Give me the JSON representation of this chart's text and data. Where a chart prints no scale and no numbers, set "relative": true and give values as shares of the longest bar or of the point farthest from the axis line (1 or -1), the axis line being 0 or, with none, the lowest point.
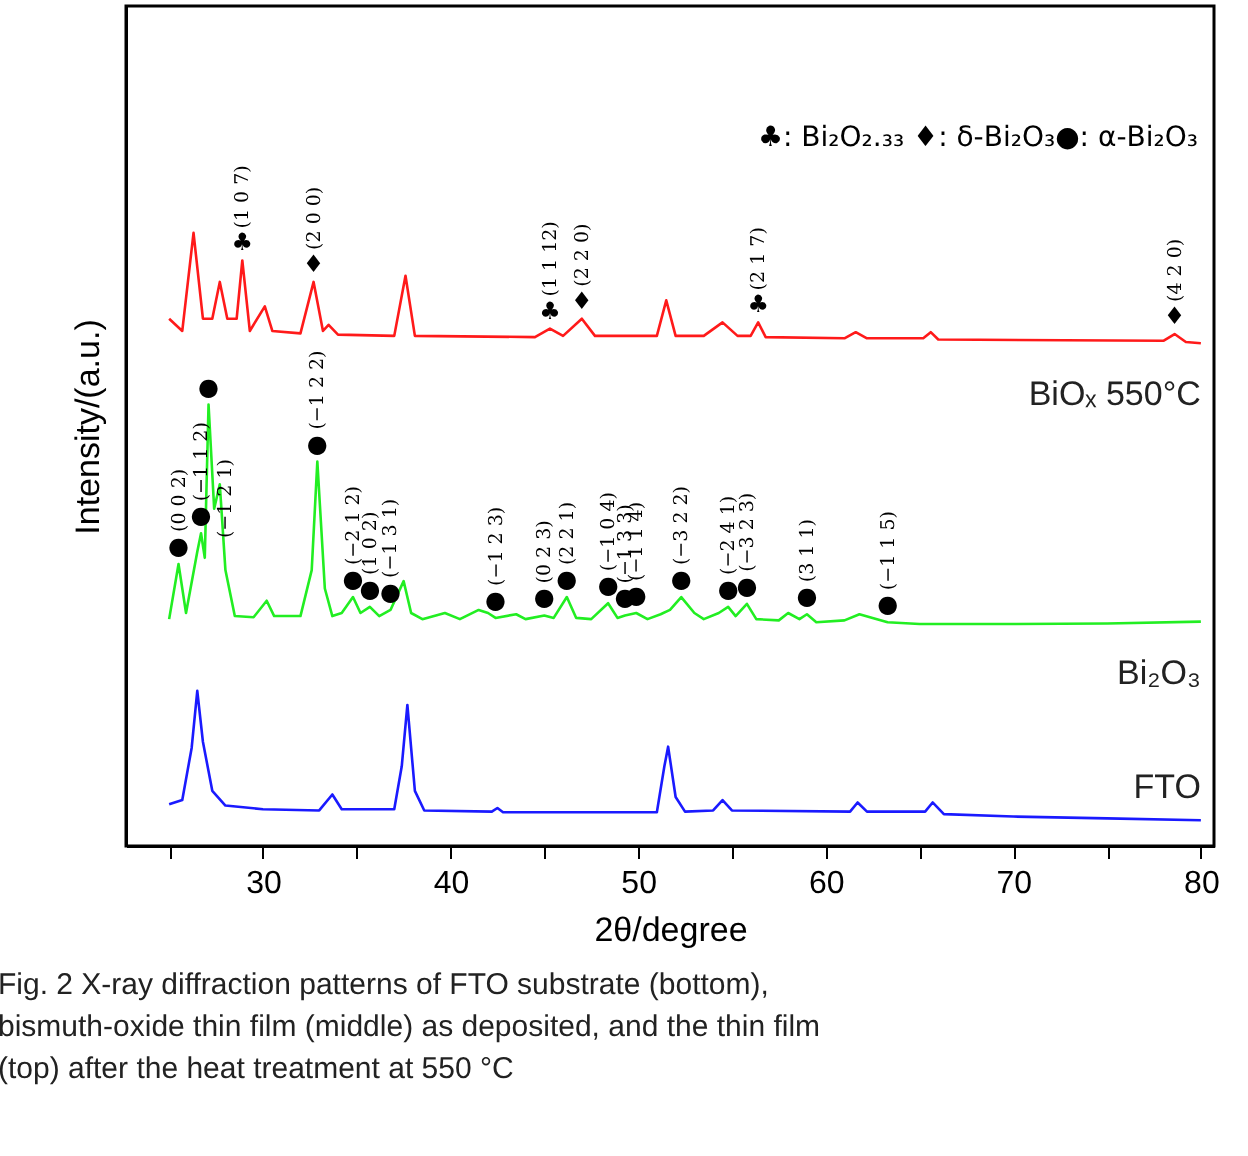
{
  "chart_data": {
    "type": "line",
    "relative": true,
    "xlabel": "2θ/degree",
    "ylabel": "Intensity/(a.u.)",
    "xlim": [
      22.7,
      80.7
    ],
    "xticks": [
      {
        "value": 25,
        "label": null
      },
      30,
      {
        "value": 35,
        "label": null
      },
      40,
      {
        "value": 45,
        "label": null
      },
      50,
      {
        "value": 55,
        "label": null
      },
      60,
      {
        "value": 65,
        "label": null
      },
      70,
      {
        "value": 75,
        "label": null
      },
      80
    ],
    "grid": false,
    "line_style": "solid",
    "marker": "none",
    "series": [
      {
        "name": "BiOₓ 550°C",
        "color": "#ff1a1a",
        "x": [
          25.0,
          25.7,
          26.3,
          26.8,
          27.3,
          27.7,
          28.1,
          28.6,
          28.9,
          29.3,
          30.1,
          30.5,
          32.0,
          32.7,
          33.2,
          33.5,
          34.0,
          37.0,
          37.6,
          38.1,
          44.5,
          45.3,
          46.0,
          47.0,
          47.7,
          51.0,
          51.5,
          52.0,
          53.5,
          54.5,
          55.3,
          56.0,
          56.4,
          56.8,
          61.0,
          61.6,
          62.2,
          65.2,
          65.6,
          66.0,
          78.0,
          78.6,
          79.2,
          80.0
        ],
        "values": [
          0.86,
          0.84,
          1.0,
          0.86,
          0.86,
          0.92,
          0.86,
          0.86,
          0.955,
          0.84,
          0.88,
          0.84,
          0.836,
          0.92,
          0.84,
          0.85,
          0.834,
          0.832,
          0.93,
          0.832,
          0.83,
          0.844,
          0.832,
          0.86,
          0.832,
          0.832,
          0.89,
          0.832,
          0.832,
          0.854,
          0.832,
          0.832,
          0.854,
          0.83,
          0.828,
          0.838,
          0.828,
          0.828,
          0.838,
          0.826,
          0.824,
          0.835,
          0.822,
          0.82
        ]
      },
      {
        "name": "Bi₂O₃",
        "color": "#22ee22",
        "x": [
          25.0,
          25.5,
          25.9,
          26.5,
          26.7,
          26.9,
          27.1,
          27.4,
          27.7,
          28.0,
          28.5,
          29.5,
          30.2,
          30.6,
          32.0,
          32.6,
          32.9,
          33.3,
          33.7,
          34.2,
          34.8,
          35.2,
          35.7,
          36.2,
          36.8,
          37.5,
          37.9,
          38.5,
          39.7,
          40.5,
          41.5,
          42.0,
          42.4,
          43.5,
          44.0,
          45.0,
          45.5,
          46.2,
          46.7,
          47.5,
          48.4,
          48.9,
          49.3,
          49.9,
          50.5,
          51.2,
          51.7,
          52.3,
          53.0,
          53.5,
          54.3,
          54.8,
          55.2,
          55.8,
          56.3,
          57.5,
          58.0,
          58.6,
          59.0,
          59.5,
          61.0,
          61.8,
          62.5,
          63.3,
          65.0,
          70.0,
          75.0,
          80.0
        ],
        "values": [
          0.37,
          0.46,
          0.38,
          0.48,
          0.51,
          0.47,
          0.72,
          0.55,
          0.59,
          0.45,
          0.375,
          0.373,
          0.4,
          0.375,
          0.375,
          0.45,
          0.627,
          0.42,
          0.375,
          0.38,
          0.406,
          0.38,
          0.39,
          0.375,
          0.385,
          0.432,
          0.38,
          0.37,
          0.38,
          0.37,
          0.385,
          0.38,
          0.372,
          0.378,
          0.37,
          0.376,
          0.372,
          0.406,
          0.372,
          0.37,
          0.396,
          0.372,
          0.376,
          0.38,
          0.37,
          0.378,
          0.385,
          0.406,
          0.38,
          0.37,
          0.38,
          0.39,
          0.375,
          0.395,
          0.37,
          0.368,
          0.38,
          0.37,
          0.378,
          0.365,
          0.368,
          0.378,
          0.372,
          0.365,
          0.362,
          0.362,
          0.363,
          0.366
        ]
      },
      {
        "name": "FTO",
        "color": "#1a1aff",
        "x": [
          25.0,
          25.7,
          26.2,
          26.5,
          26.8,
          27.3,
          28.0,
          30.0,
          33.0,
          33.7,
          34.2,
          37.0,
          37.4,
          37.7,
          38.1,
          38.6,
          42.2,
          42.5,
          42.8,
          51.0,
          51.4,
          51.6,
          52.0,
          52.5,
          54.0,
          54.5,
          55.0,
          61.3,
          61.7,
          62.2,
          65.3,
          65.7,
          66.3,
          70.0,
          75.0,
          80.0
        ],
        "values": [
          0.068,
          0.075,
          0.16,
          0.253,
          0.17,
          0.09,
          0.066,
          0.06,
          0.058,
          0.084,
          0.06,
          0.06,
          0.13,
          0.23,
          0.09,
          0.058,
          0.056,
          0.062,
          0.055,
          0.055,
          0.13,
          0.162,
          0.08,
          0.056,
          0.058,
          0.075,
          0.058,
          0.056,
          0.071,
          0.056,
          0.056,
          0.071,
          0.052,
          0.048,
          0.045,
          0.042
        ]
      }
    ],
    "annotations": [
      "♣: Bi₂O₂.₃₃ ♦: δ-Bi₂O₃●: α-Bi₂O₃",
      "Fig. 2  X-ray diffraction patterns of FTO substrate (bottom), bismuth-oxide thin film (middle) as deposited, and the thin film (top) after the heat treatment at 550 °C",
      {
        "text": "♣",
        "x": 28.9,
        "y": 0.955
      },
      {
        "text": "(1 0 7)",
        "x": 28.9,
        "y": 0.955
      },
      {
        "text": "♦",
        "x": 32.7,
        "y": 0.92
      },
      {
        "text": "(2 0 0)",
        "x": 32.7,
        "y": 0.92
      },
      {
        "text": "♣",
        "x": 45.3,
        "y": 0.844
      },
      {
        "text": "(1 1 12)",
        "x": 45.3,
        "y": 0.844
      },
      {
        "text": "♦",
        "x": 47.0,
        "y": 0.86
      },
      {
        "text": "(2 2 0)",
        "x": 47.0,
        "y": 0.86
      },
      {
        "text": "♣",
        "x": 56.4,
        "y": 0.854
      },
      {
        "text": "(2 1 7)",
        "x": 56.4,
        "y": 0.854
      },
      {
        "text": "♦",
        "x": 78.6,
        "y": 0.835
      },
      {
        "text": "(4 2 0)",
        "x": 78.6,
        "y": 0.835
      },
      {
        "text": "●",
        "x": 25.5,
        "y": 0.46
      },
      {
        "text": "(0 0 2)",
        "x": 25.5,
        "y": 0.46
      },
      {
        "text": "●",
        "x": 26.7,
        "y": 0.51
      },
      {
        "text": "(−1 1 2)",
        "x": 26.7,
        "y": 0.51
      },
      {
        "text": "●",
        "x": 27.1,
        "y": 0.72
      },
      {
        "text": "(−1 2 1)",
        "x": 28.0,
        "y": 0.45
      },
      {
        "text": "●",
        "x": 32.9,
        "y": 0.627
      },
      {
        "text": "(−1 2 2)",
        "x": 32.9,
        "y": 0.627
      },
      {
        "text": "●",
        "x": 34.8,
        "y": 0.406
      },
      {
        "text": "(−2 1 2)",
        "x": 34.8,
        "y": 0.406
      },
      {
        "text": "●",
        "x": 35.7,
        "y": 0.39
      },
      {
        "text": "(1 0 2)",
        "x": 35.7,
        "y": 0.39
      },
      {
        "text": "●",
        "x": 36.8,
        "y": 0.385
      },
      {
        "text": "(−1 3 1)",
        "x": 36.8,
        "y": 0.385
      },
      {
        "text": "●",
        "x": 42.4,
        "y": 0.372
      },
      {
        "text": "(−1 2 3)",
        "x": 42.4,
        "y": 0.372
      },
      {
        "text": "●",
        "x": 45.0,
        "y": 0.376
      },
      {
        "text": "(0 2 3)",
        "x": 45.0,
        "y": 0.376
      },
      {
        "text": "●",
        "x": 46.2,
        "y": 0.406
      },
      {
        "text": "(2 2 1)",
        "x": 46.2,
        "y": 0.406
      },
      {
        "text": "●",
        "x": 48.4,
        "y": 0.396
      },
      {
        "text": "(−1 0 4)",
        "x": 48.4,
        "y": 0.396
      },
      {
        "text": "●",
        "x": 49.3,
        "y": 0.376
      },
      {
        "text": "(−1 3 3)",
        "x": 49.3,
        "y": 0.376
      },
      {
        "text": "●",
        "x": 49.9,
        "y": 0.38
      },
      {
        "text": "(−1 1 4)",
        "x": 49.9,
        "y": 0.38
      },
      {
        "text": "●",
        "x": 52.3,
        "y": 0.406
      },
      {
        "text": "(−3 2 2)",
        "x": 52.3,
        "y": 0.406
      },
      {
        "text": "●",
        "x": 54.8,
        "y": 0.39
      },
      {
        "text": "(−2 4 1)",
        "x": 54.8,
        "y": 0.39
      },
      {
        "text": "●",
        "x": 55.8,
        "y": 0.395
      },
      {
        "text": "(−3 2 3)",
        "x": 55.8,
        "y": 0.395
      },
      {
        "text": "●",
        "x": 59.0,
        "y": 0.378
      },
      {
        "text": "(3 1 1)",
        "x": 59.0,
        "y": 0.378
      },
      {
        "text": "●",
        "x": 63.3,
        "y": 0.365
      },
      {
        "text": "(−1 1 5)",
        "x": 63.3,
        "y": 0.365
      }
    ]
  }
}
